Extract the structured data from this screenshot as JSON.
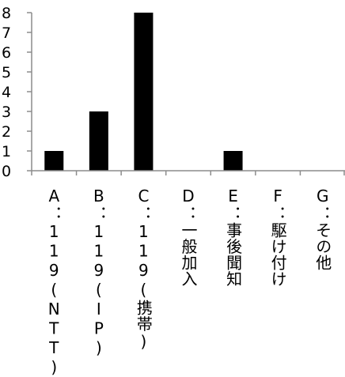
{
  "chart_data": {
    "type": "bar",
    "categories": [
      "A：119(NTT)",
      "B：119(IP)",
      "C：119(携帯)",
      "D：一般加入",
      "E：事後聞知",
      "F：駆け付け",
      "G：その他"
    ],
    "values": [
      1,
      3,
      8,
      0,
      1,
      0,
      0
    ],
    "ylim": [
      0,
      8
    ],
    "yticks": [
      "0",
      "1",
      "2",
      "3",
      "4",
      "5",
      "6",
      "7",
      "8"
    ],
    "grid": false,
    "legend": "none",
    "title": "",
    "xlabel": "",
    "ylabel": "",
    "bar_color": "#000000",
    "axis_color": "#8c8c8c"
  }
}
